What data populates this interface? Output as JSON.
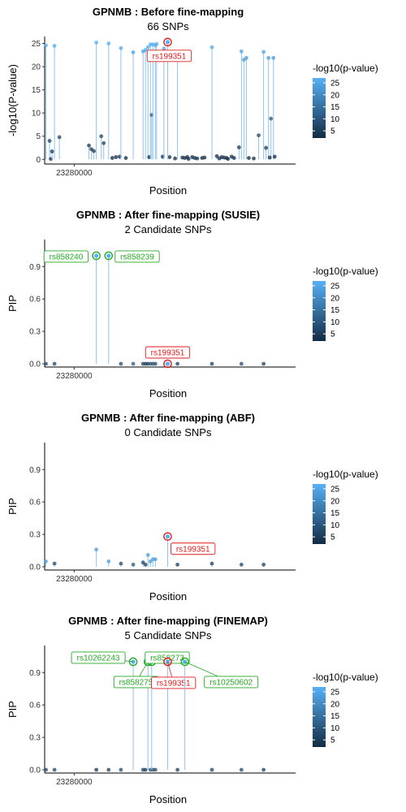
{
  "chart_data": [
    {
      "type": "scatter",
      "title": "GPNMB : Before fine-mapping",
      "subtitle": "66 SNPs",
      "xlabel": "Position",
      "ylabel": "-log10(P-value)",
      "x_tick_labels": [
        "23280000"
      ],
      "x_ticks": [
        23280000
      ],
      "y_ticks": [
        0,
        5,
        10,
        15,
        20,
        25
      ],
      "y_tick_labels": [
        "0",
        "5",
        "10",
        "15",
        "20",
        "25"
      ],
      "xlim": [
        23268000,
        23370000
      ],
      "ylim": [
        -1,
        26.5
      ],
      "stems": true,
      "legend": {
        "title": "-log10(p-value)",
        "ticks": [
          5,
          10,
          15,
          20,
          25
        ],
        "placement": "right"
      },
      "highlight": [
        {
          "label": "rs199351",
          "x": 23318000,
          "y": 25.3,
          "color": "#e31a1c"
        }
      ],
      "points": [
        [
          23268500,
          24.6
        ],
        [
          23270000,
          4.0
        ],
        [
          23270500,
          0.1
        ],
        [
          23271000,
          1.7
        ],
        [
          23272000,
          24.5
        ],
        [
          23274000,
          4.8
        ],
        [
          23286000,
          3.0
        ],
        [
          23287000,
          2.2
        ],
        [
          23288000,
          1.8
        ],
        [
          23289000,
          25.2
        ],
        [
          23291000,
          5.0
        ],
        [
          23292000,
          3.5
        ],
        [
          23294000,
          25.0
        ],
        [
          23295500,
          0.3
        ],
        [
          23297000,
          0.5
        ],
        [
          23298500,
          0.6
        ],
        [
          23299000,
          24.0
        ],
        [
          23301000,
          0.3
        ],
        [
          23304000,
          23.1
        ],
        [
          23308000,
          23.3
        ],
        [
          23309000,
          23.6
        ],
        [
          23310000,
          24.2
        ],
        [
          23310500,
          0.5
        ],
        [
          23311000,
          24.8
        ],
        [
          23311500,
          9.6
        ],
        [
          23312000,
          24.8
        ],
        [
          23313000,
          24.6
        ],
        [
          23313500,
          24.9
        ],
        [
          23316000,
          0.6
        ],
        [
          23316500,
          23.9
        ],
        [
          23318000,
          25.3
        ],
        [
          23318800,
          0.5
        ],
        [
          23321000,
          0.2
        ],
        [
          23322000,
          22.9
        ],
        [
          23324000,
          0.4
        ],
        [
          23325000,
          0.3
        ],
        [
          23326000,
          0.5
        ],
        [
          23326500,
          0.1
        ],
        [
          23328000,
          0.5
        ],
        [
          23329000,
          0.3
        ],
        [
          23330000,
          0.2
        ],
        [
          23332000,
          0.3
        ],
        [
          23333000,
          0.4
        ],
        [
          23336000,
          24.2
        ],
        [
          23338000,
          0.7
        ],
        [
          23339000,
          0.2
        ],
        [
          23340000,
          0.5
        ],
        [
          23341000,
          0.4
        ],
        [
          23342000,
          0.3
        ],
        [
          23342500,
          0.1
        ],
        [
          23344000,
          0.6
        ],
        [
          23345000,
          0.3
        ],
        [
          23347000,
          2.6
        ],
        [
          23348000,
          23.3
        ],
        [
          23349000,
          21.5
        ],
        [
          23350000,
          21.9
        ],
        [
          23351000,
          0.3
        ],
        [
          23353000,
          0.2
        ],
        [
          23355000,
          5.2
        ],
        [
          23357000,
          23.2
        ],
        [
          23358000,
          2.5
        ],
        [
          23359000,
          21.9
        ],
        [
          23360000,
          8.8
        ],
        [
          23361000,
          21.9
        ],
        [
          23359500,
          0.4
        ],
        [
          23361500,
          0.6
        ]
      ]
    },
    {
      "type": "scatter",
      "title": "GPNMB : After fine-mapping (SUSIE)",
      "subtitle": "2 Candidate SNPs",
      "xlabel": "Position",
      "ylabel": "PIP",
      "x_tick_labels": [
        "23280000"
      ],
      "x_ticks": [
        23280000
      ],
      "y_ticks": [
        0,
        0.3,
        0.6,
        0.9
      ],
      "y_tick_labels": [
        "0.0",
        "0.3",
        "0.6",
        "0.9"
      ],
      "xlim": [
        23268000,
        23370000
      ],
      "ylim": [
        -0.03,
        1.15
      ],
      "stems": true,
      "legend": {
        "title": "-log10(p-value)",
        "ticks": [
          5,
          10,
          15,
          20,
          25
        ],
        "placement": "right"
      },
      "highlight": [
        {
          "label": "rs858240",
          "x": 23289000,
          "y": 1.0,
          "color": "#22aa22"
        },
        {
          "label": "rs858239",
          "x": 23294000,
          "y": 1.0,
          "color": "#22aa22"
        },
        {
          "label": "rs199351",
          "x": 23318000,
          "y": 0.0,
          "color": "#e31a1c"
        }
      ],
      "points": "low"
    },
    {
      "type": "scatter",
      "title": "GPNMB : After fine-mapping (ABF)",
      "subtitle": "0 Candidate SNPs",
      "xlabel": "Position",
      "ylabel": "PIP",
      "x_tick_labels": [
        "23280000"
      ],
      "x_ticks": [
        23280000
      ],
      "y_ticks": [
        0,
        0.3,
        0.6,
        0.9
      ],
      "y_tick_labels": [
        "0.0",
        "0.3",
        "0.6",
        "0.9"
      ],
      "xlim": [
        23268000,
        23370000
      ],
      "ylim": [
        -0.03,
        1.15
      ],
      "stems": true,
      "legend": {
        "title": "-log10(p-value)",
        "ticks": [
          5,
          10,
          15,
          20,
          25
        ],
        "placement": "right"
      },
      "highlight": [
        {
          "label": "rs199351",
          "x": 23318000,
          "y": 0.28,
          "color": "#e31a1c"
        }
      ],
      "points": [
        [
          23268500,
          0.05
        ],
        [
          23272000,
          0.03
        ],
        [
          23289000,
          0.16
        ],
        [
          23294000,
          0.05
        ],
        [
          23299000,
          0.03
        ],
        [
          23304000,
          0.02
        ],
        [
          23308000,
          0.04
        ],
        [
          23309000,
          0.02
        ],
        [
          23310000,
          0.11
        ],
        [
          23311000,
          0.05
        ],
        [
          23312000,
          0.07
        ],
        [
          23313000,
          0.07
        ],
        [
          23318000,
          0.28
        ],
        [
          23322000,
          0.02
        ],
        [
          23336000,
          0.03
        ],
        [
          23348000,
          0.02
        ],
        [
          23357000,
          0.02
        ]
      ]
    },
    {
      "type": "scatter",
      "title": "GPNMB : After fine-mapping (FINEMAP)",
      "subtitle": "5 Candidate SNPs",
      "xlabel": "Position",
      "ylabel": "PIP",
      "x_tick_labels": [
        "23280000"
      ],
      "x_ticks": [
        23280000
      ],
      "y_ticks": [
        0,
        0.3,
        0.6,
        0.9
      ],
      "y_tick_labels": [
        "0.0",
        "0.3",
        "0.6",
        "0.9"
      ],
      "xlim": [
        23268000,
        23370000
      ],
      "ylim": [
        -0.03,
        1.15
      ],
      "stems": true,
      "legend": {
        "title": "-log10(p-value)",
        "ticks": [
          5,
          10,
          15,
          20,
          25
        ],
        "placement": "right"
      },
      "highlight": [
        {
          "label": "rs10262243",
          "x": 23304000,
          "y": 1.0,
          "color": "#22aa22"
        },
        {
          "label": "rs858275",
          "x": 23310000,
          "y": 1.0,
          "color": "#22aa22"
        },
        {
          "label": "rs858273",
          "x": 23311500,
          "y": 1.0,
          "color": "#22aa22"
        },
        {
          "label": "rs199351",
          "x": 23318000,
          "y": 1.0,
          "color": "#e31a1c"
        },
        {
          "label": "rs10250602",
          "x": 23325000,
          "y": 1.0,
          "color": "#22aa22"
        }
      ],
      "points": "low"
    }
  ]
}
